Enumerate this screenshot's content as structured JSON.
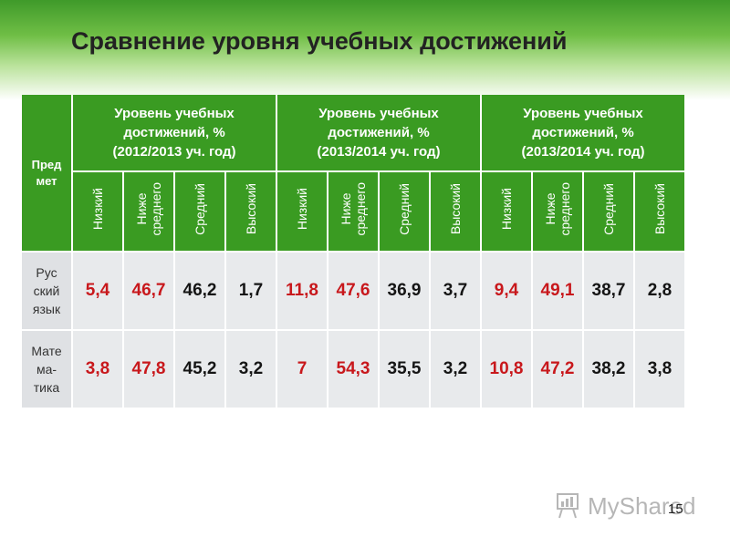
{
  "title": "Сравнение уровня учебных достижений",
  "table": {
    "subject_header": [
      "Пред",
      "мет"
    ],
    "periods": [
      [
        "Уровень учебных",
        "достижений, %",
        "(2012/2013 уч. год)"
      ],
      [
        "Уровень учебных",
        "достижений, %",
        "(2013/2014 уч. год)"
      ],
      [
        "Уровень учебных",
        "достижений, %",
        "(2013/2014 уч. год)"
      ]
    ],
    "levels": [
      [
        "Низкий"
      ],
      [
        "Ниже",
        "среднего"
      ],
      [
        "Средний"
      ],
      [
        "Высокий"
      ],
      [
        "Низкий"
      ],
      [
        "Ниже",
        "среднего"
      ],
      [
        "Средний"
      ],
      [
        "Высокий"
      ],
      [
        "Низкий"
      ],
      [
        "Ниже",
        "среднего"
      ],
      [
        "Средний"
      ],
      [
        "Высокий"
      ]
    ],
    "rows": [
      {
        "subject": [
          "Рус",
          "ский",
          "язык"
        ],
        "values": [
          "5,4",
          "46,7",
          "46,2",
          "1,7",
          "11,8",
          "47,6",
          "36,9",
          "3,7",
          "9,4",
          "49,1",
          "38,7",
          "2,8"
        ]
      },
      {
        "subject": [
          "Мате",
          "ма-",
          "тика"
        ],
        "values": [
          "3,8",
          "47,8",
          "45,2",
          "3,2",
          "7",
          "54,3",
          "35,5",
          "3,2",
          "10,8",
          "47,2",
          "38,2",
          "3,8"
        ]
      }
    ],
    "colors": {
      "header_green": "#3a9b22",
      "value_red": "#c8181c",
      "value_dark": "#151515"
    }
  },
  "footer": {
    "logo_text": "MyShared",
    "page_number": "15"
  }
}
